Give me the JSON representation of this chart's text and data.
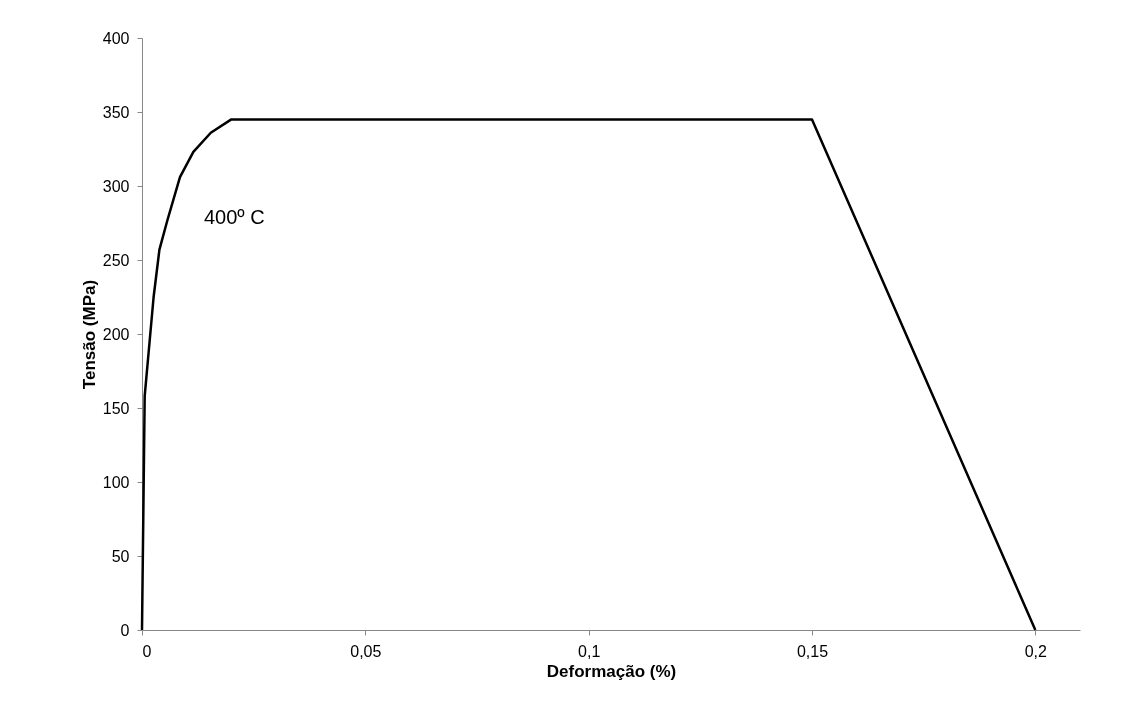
{
  "chart_data": {
    "type": "line",
    "xlabel": "Deformação (%)",
    "ylabel": "Tensão (MPa)",
    "x": [
      0,
      0.0006,
      0.0026,
      0.0039,
      0.0057,
      0.0085,
      0.0115,
      0.0154,
      0.02,
      0.15,
      0.2
    ],
    "series": [
      {
        "color": "#000000",
        "values": [
          0,
          158,
          225,
          257,
          277,
          306,
          323,
          336,
          345,
          345,
          0
        ]
      }
    ],
    "xlim": [
      0,
      0.21
    ],
    "xticks": [
      {
        "value": 0,
        "label": "0"
      },
      {
        "value": 0.05,
        "label": "0,05"
      },
      {
        "value": 0.1,
        "label": "0,1"
      },
      {
        "value": 0.15,
        "label": "0,15"
      },
      {
        "value": 0.2,
        "label": "0,2"
      }
    ],
    "ylim": [
      0,
      400
    ],
    "yticks": [
      0,
      50,
      100,
      150,
      200,
      250,
      300,
      350,
      400
    ],
    "annotations": [
      "400º C"
    ],
    "grid": false,
    "marker": "none",
    "line_style": "solid"
  }
}
